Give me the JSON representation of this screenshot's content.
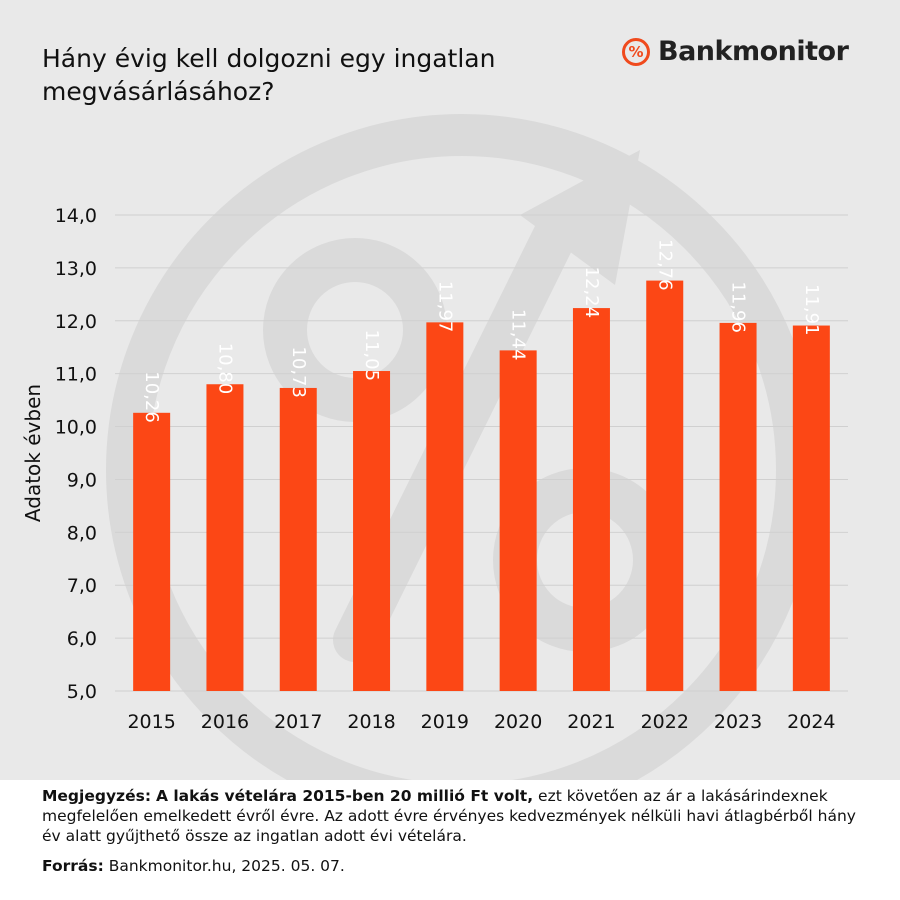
{
  "title": "Hány évig kell dolgozni egy ingatlan megvásárlásához?",
  "brand": {
    "icon": "percent-circle-icon",
    "icon_glyph": "%",
    "name": "Bankmonitor",
    "accent": "#f04a1d"
  },
  "chart_data": {
    "type": "bar",
    "categories": [
      "2015",
      "2016",
      "2017",
      "2018",
      "2019",
      "2020",
      "2021",
      "2022",
      "2023",
      "2024"
    ],
    "values": [
      10.26,
      10.8,
      10.73,
      11.05,
      11.97,
      11.44,
      12.24,
      12.76,
      11.96,
      11.91
    ],
    "value_labels": [
      "10,26",
      "10,80",
      "10,73",
      "11,05",
      "11,97",
      "11,44",
      "12,24",
      "12,76",
      "11,96",
      "11,91"
    ],
    "ylabel": "Adatok évben",
    "ylim": [
      5.0,
      14.0
    ],
    "yticks": [
      5.0,
      6.0,
      7.0,
      8.0,
      9.0,
      10.0,
      11.0,
      12.0,
      13.0,
      14.0
    ],
    "ytick_labels": [
      "5,0",
      "6,0",
      "7,0",
      "8,0",
      "9,0",
      "10,0",
      "11,0",
      "12,0",
      "13,0",
      "14,0"
    ],
    "grid": true,
    "bar_color": "#fc4715"
  },
  "note": {
    "label": "Megjegyzés:",
    "highlight": "A lakás vételára 2015-ben 20 millió Ft volt,",
    "text": "ezt követően az ár a lakásárindexnek megfelelően emelkedett évről évre. Az adott évre érvényes kedvezmények nélküli havi átlagbérből hány év alatt gyűjthető össze az ingatlan adott évi vételára."
  },
  "source": {
    "label": "Forrás:",
    "text": "Bankmonitor.hu, 2025. 05. 07."
  }
}
